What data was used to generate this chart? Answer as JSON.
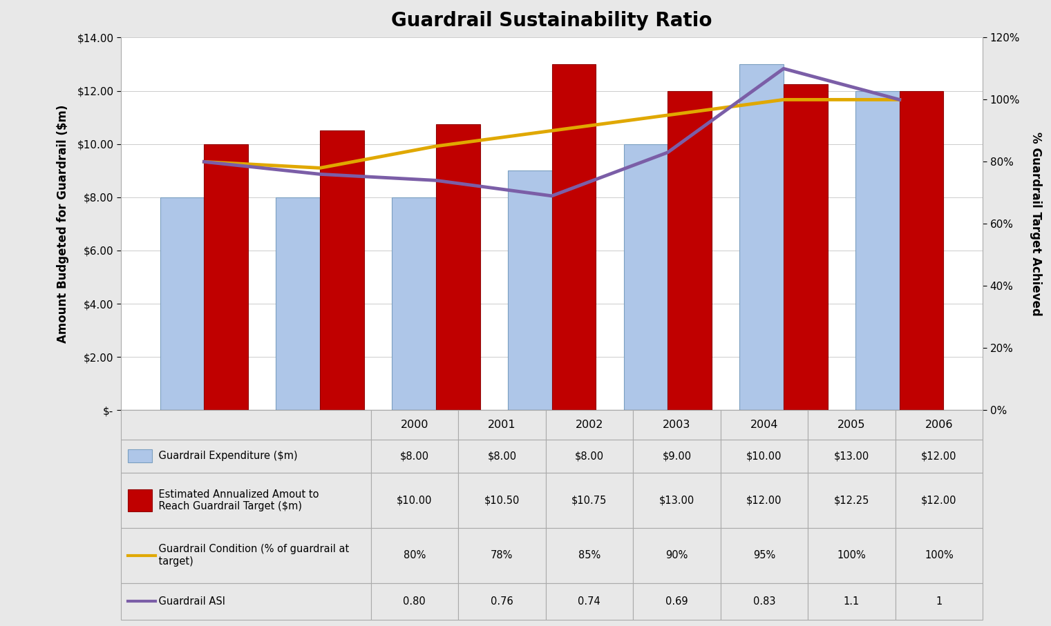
{
  "title": "Guardrail Sustainability Ratio",
  "years": [
    "2000",
    "2001",
    "2002",
    "2003",
    "2004",
    "2005",
    "2006"
  ],
  "expenditure": [
    8.0,
    8.0,
    8.0,
    9.0,
    10.0,
    13.0,
    12.0
  ],
  "annualized_need": [
    10.0,
    10.5,
    10.75,
    13.0,
    12.0,
    12.25,
    12.0
  ],
  "condition_pct": [
    0.8,
    0.78,
    0.85,
    0.9,
    0.95,
    1.0,
    1.0
  ],
  "asi": [
    0.8,
    0.76,
    0.74,
    0.69,
    0.83,
    1.1,
    1.0
  ],
  "bar_color_expenditure": "#aec6e8",
  "bar_color_need": "#c00000",
  "line_color_condition": "#e0a800",
  "line_color_asi": "#7b5ea7",
  "ylabel_left": "Amount Budgeted for Guardrail ($m)",
  "ylabel_right": "% Guardrail Target Achieved",
  "ylim_left": [
    0,
    14
  ],
  "ylim_right": [
    0,
    1.2
  ],
  "yticks_left": [
    0,
    2,
    4,
    6,
    8,
    10,
    12,
    14
  ],
  "ytick_labels_left": [
    "$-",
    "$2.00",
    "$4.00",
    "$6.00",
    "$8.00",
    "$10.00",
    "$12.00",
    "$14.00"
  ],
  "yticks_right": [
    0,
    0.2,
    0.4,
    0.6,
    0.8,
    1.0,
    1.2
  ],
  "ytick_labels_right": [
    "0%",
    "20%",
    "40%",
    "60%",
    "80%",
    "100%",
    "120%"
  ],
  "expenditure_labels": [
    "$8.00",
    "$8.00",
    "$8.00",
    "$9.00",
    "$10.00",
    "$13.00",
    "$12.00"
  ],
  "need_labels": [
    "$10.00",
    "$10.50",
    "$10.75",
    "$13.00",
    "$12.00",
    "$12.25",
    "$12.00"
  ],
  "condition_labels": [
    "80%",
    "78%",
    "85%",
    "90%",
    "95%",
    "100%",
    "100%"
  ],
  "asi_labels": [
    "0.80",
    "0.76",
    "0.74",
    "0.69",
    "0.83",
    "1.1",
    "1"
  ],
  "legend_labels": [
    "Guardrail Expenditure ($m)",
    "Estimated Annualized Amout to\nReach Guardrail Target ($m)",
    "Guardrail Condition (% of guardrail at\ntarget)",
    "Guardrail ASI"
  ],
  "bg_color": "#e8e8e8",
  "plot_bg": "#ffffff",
  "border_color": "#aaaaaa",
  "bar_edge_expenditure": "#7a9fc0",
  "bar_edge_need": "#900000"
}
